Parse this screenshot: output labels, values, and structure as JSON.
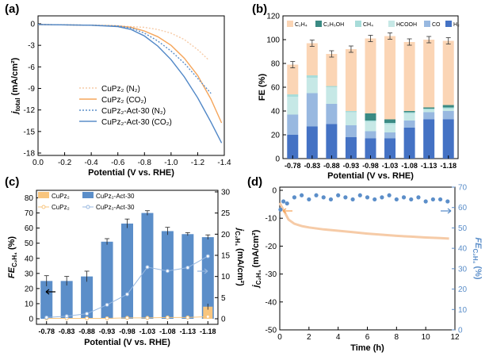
{
  "panels": {
    "a": "(a)",
    "b": "(b)",
    "c": "(c)",
    "d": "(d)"
  },
  "colors": {
    "orange": "#f5a55a",
    "orange_light": "#f6cba7",
    "blue": "#5b8ec9",
    "blue_dark": "#4472c4",
    "teal": "#3a8a83",
    "cyan": "#a8dcd9",
    "light_blue": "#98b8e0",
    "pale_orange": "#fbd5b5",
    "bar_orange_c": "#f8c57e",
    "bar_blue_c": "#5b8ec9"
  },
  "chart_data": [
    {
      "id": "a",
      "type": "line",
      "xlabel": "Potential (V vs. RHE)",
      "ylabel_prefix": "j",
      "ylabel_sub": "total",
      "ylabel_suffix": " (mA/cm²)",
      "xlim": [
        0.0,
        -1.4
      ],
      "ylim": [
        -18,
        0
      ],
      "xticks": [
        "0.0",
        "-0.2",
        "-0.4",
        "-0.6",
        "-0.8",
        "-1.0",
        "-1.2",
        "-1.4"
      ],
      "yticks": [
        "0",
        "-3",
        "-6",
        "-9",
        "-12",
        "-15",
        "-18"
      ],
      "legend": [
        {
          "label": "CuPz₂ (N₂)",
          "color": "#f6cba7",
          "dash": "2,2"
        },
        {
          "label": "CuPz₂ (CO₂)",
          "color": "#f5a55a",
          "dash": ""
        },
        {
          "label": "CuPz₂-Act-30 (N₂)",
          "color": "#5b8ec9",
          "dash": "2,2"
        },
        {
          "label": "CuPz₂-Act-30 (CO₂)",
          "color": "#5b8ec9",
          "dash": ""
        }
      ],
      "series": [
        {
          "name": "CuPz2 (N2)",
          "x": [
            0.0,
            -0.4,
            -0.6,
            -0.8,
            -0.9,
            -1.0,
            -1.1,
            -1.2,
            -1.28
          ],
          "y": [
            -0.1,
            -0.2,
            -0.3,
            -0.5,
            -0.8,
            -1.3,
            -2.2,
            -3.6,
            -5.0
          ]
        },
        {
          "name": "CuPz2 (CO2)",
          "x": [
            0.0,
            -0.4,
            -0.6,
            -0.7,
            -0.8,
            -0.9,
            -1.0,
            -1.1,
            -1.2,
            -1.3,
            -1.38
          ],
          "y": [
            -0.1,
            -0.2,
            -0.3,
            -0.5,
            -1.0,
            -1.8,
            -3.0,
            -4.8,
            -7.2,
            -10.5,
            -13.8
          ]
        },
        {
          "name": "CuPz2-Act-30 (N2)",
          "x": [
            0.0,
            -0.4,
            -0.6,
            -0.7,
            -0.8,
            -0.9,
            -1.0,
            -1.1,
            -1.2,
            -1.3
          ],
          "y": [
            -0.1,
            -0.2,
            -0.3,
            -0.6,
            -1.3,
            -2.4,
            -3.8,
            -5.5,
            -7.6,
            -9.7
          ]
        },
        {
          "name": "CuPz2-Act-30 (CO2)",
          "x": [
            0.0,
            -0.4,
            -0.6,
            -0.7,
            -0.8,
            -0.9,
            -1.0,
            -1.1,
            -1.2,
            -1.3,
            -1.38
          ],
          "y": [
            -0.1,
            -0.2,
            -0.4,
            -0.8,
            -1.7,
            -3.1,
            -5.0,
            -7.4,
            -10.3,
            -13.7,
            -16.6
          ]
        }
      ]
    },
    {
      "id": "b",
      "type": "bar",
      "stacked": true,
      "xlabel": "Potential (V vs. RHE)",
      "ylabel": "FE (%)",
      "ylim": [
        0,
        120
      ],
      "yticks": [
        "0",
        "20",
        "40",
        "60",
        "80",
        "100",
        "120"
      ],
      "categories": [
        "-0.78",
        "-0.83",
        "-0.88",
        "-0.93",
        "-0.98",
        "-1.03",
        "-1.08",
        "-1.13",
        "-1.18"
      ],
      "legend": [
        {
          "label": "C₂H₄",
          "color": "#fbd5b5"
        },
        {
          "label": "C₂H₅OH",
          "color": "#3a8a83"
        },
        {
          "label": "CH₄",
          "color": "#a8dcd9"
        },
        {
          "label": "HCOOH",
          "color": "#c6e8e6"
        },
        {
          "label": "CO",
          "color": "#98b8e0"
        },
        {
          "label": "H₂",
          "color": "#4472c4"
        }
      ],
      "series": [
        {
          "name": "H2",
          "color": "#4472c4",
          "values": [
            20,
            27,
            29,
            18,
            17,
            17,
            26,
            33,
            33
          ]
        },
        {
          "name": "CO",
          "color": "#98b8e0",
          "values": [
            17,
            28,
            17,
            10,
            6,
            5,
            6,
            6,
            7
          ]
        },
        {
          "name": "HCOOH",
          "color": "#c6e8e6",
          "values": [
            15,
            13,
            14,
            11,
            8,
            7,
            6,
            2,
            2
          ]
        },
        {
          "name": "CH4",
          "color": "#a8dcd9",
          "values": [
            2,
            2,
            1,
            1,
            1,
            1,
            1,
            1,
            1
          ]
        },
        {
          "name": "C2H5OH",
          "color": "#3a8a83",
          "values": [
            0,
            0,
            0,
            0,
            6,
            3,
            1,
            1,
            2
          ]
        },
        {
          "name": "C2H4",
          "color": "#fbd5b5",
          "values": [
            25,
            27,
            27,
            52,
            63,
            70,
            58,
            57,
            54
          ]
        }
      ]
    },
    {
      "id": "c",
      "type": "bar",
      "xlabel": "Potential (V vs. RHE)",
      "ylabel_prefix": "FE",
      "ylabel_sub": "C₂H₄",
      "ylabel_suffix": " (%)",
      "y2label_prefix": "j",
      "y2label_sub": "C₂H₄",
      "y2label_suffix": " (mA/cm²)",
      "ylim": [
        0,
        85
      ],
      "yticks": [
        "0",
        "10",
        "20",
        "30",
        "40",
        "50",
        "60",
        "70",
        "80"
      ],
      "y2lim": [
        -3,
        30
      ],
      "y2ticks": [
        "0",
        "5",
        "10",
        "15",
        "20",
        "25",
        "30"
      ],
      "categories": [
        "-0.78",
        "-0.83",
        "-0.88",
        "-0.93",
        "-0.98",
        "-1.03",
        "-1.08",
        "-1.13",
        "-1.18"
      ],
      "legend_bars": [
        {
          "label": "CuPz₂",
          "color": "#f8c57e"
        },
        {
          "label": "CuPz₂-Act-30",
          "color": "#5b8ec9"
        }
      ],
      "legend_lines": [
        {
          "label": "CuPz₂",
          "color": "#f8c57e"
        },
        {
          "label": "CuPz₂-Act-30",
          "color": "#98b8e0"
        }
      ],
      "series": [
        {
          "name": "CuPz2 FE",
          "kind": "bar",
          "values": [
            0,
            0,
            0,
            0,
            0,
            0,
            0,
            0,
            8
          ],
          "errors": [
            0,
            0,
            0,
            0,
            0,
            0,
            0,
            0,
            2
          ]
        },
        {
          "name": "CuPz2-Act-30 FE",
          "kind": "bar",
          "values": [
            25,
            25,
            28,
            51,
            63,
            70,
            58,
            56,
            54
          ],
          "errors": [
            3.5,
            3,
            3.5,
            2,
            3,
            1.5,
            2.5,
            1,
            1.5
          ]
        },
        {
          "name": "CuPz2 j",
          "kind": "line",
          "axis": "right",
          "values": [
            0.1,
            0.1,
            0.1,
            0.1,
            0.2,
            0.2,
            0.3,
            0.3,
            0.5
          ]
        },
        {
          "name": "CuPz2-Act-30 j",
          "kind": "line",
          "axis": "right",
          "values": [
            0.3,
            0.6,
            1.2,
            3.3,
            5.8,
            12.2,
            11.3,
            12.1,
            14.8
          ]
        }
      ]
    },
    {
      "id": "d",
      "type": "line",
      "xlabel": "Time (h)",
      "ylabel_prefix": "j",
      "ylabel_sub": "C₂H₄",
      "ylabel_suffix": " (mA/cm²)",
      "y2label_prefix": "FE",
      "y2label_sub": "C₂H₄",
      "y2label_suffix": " (%)",
      "xlim": [
        0,
        12
      ],
      "xticks": [
        "0",
        "2",
        "4",
        "6",
        "8",
        "10",
        "12"
      ],
      "ylim": [
        -50,
        0
      ],
      "yticks": [
        "0",
        "-10",
        "-20",
        "-30",
        "-40",
        "-50"
      ],
      "y2lim": [
        0,
        70
      ],
      "y2ticks": [
        "0",
        "10",
        "20",
        "30",
        "40",
        "50",
        "60",
        "70"
      ],
      "series": [
        {
          "name": "j C2H4",
          "axis": "left",
          "x": [
            0.0,
            0.1,
            0.3,
            0.6,
            1.0,
            1.5,
            2,
            3,
            4,
            5,
            6,
            7,
            8,
            9,
            10,
            11,
            11.6
          ],
          "y": [
            -4.5,
            -5.5,
            -7.5,
            -10.5,
            -12.0,
            -12.8,
            -13.3,
            -14.0,
            -14.5,
            -15.0,
            -15.5,
            -15.9,
            -16.3,
            -16.6,
            -16.9,
            -17.1,
            -17.3
          ]
        },
        {
          "name": "FE C2H4",
          "axis": "right",
          "x": [
            0.05,
            0.25,
            0.5,
            1.0,
            1.5,
            2.0,
            2.5,
            3.0,
            3.5,
            4.0,
            4.5,
            5.0,
            5.5,
            6.0,
            6.5,
            7.0,
            7.5,
            8.0,
            8.5,
            9.0,
            9.5,
            10.0,
            10.5,
            11.0,
            11.5
          ],
          "y": [
            59,
            63,
            62,
            65,
            66,
            64,
            66,
            65,
            64,
            66,
            65,
            64,
            66,
            65,
            64,
            65,
            66,
            64,
            65,
            64,
            65,
            63,
            64,
            64,
            63
          ]
        }
      ]
    }
  ]
}
